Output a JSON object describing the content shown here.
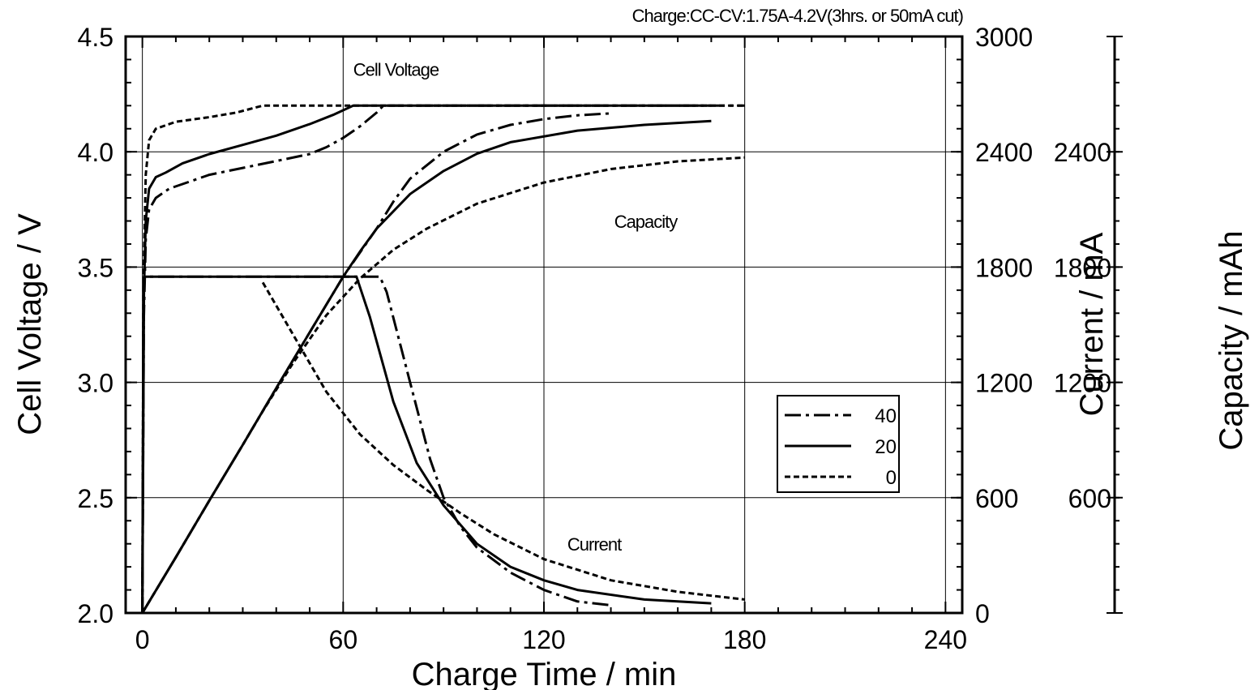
{
  "chart_data": {
    "type": "line",
    "subtitle": "Charge:CC-CV:1.75A-4.2V(3hrs. or 50mA cut)",
    "xlabel": "Charge Time / min",
    "ylabel_left": "Cell Voltage / V",
    "ylabel_right_1": "Current / mA",
    "ylabel_right_2": "Capacity / mAh",
    "xlim": [
      -5,
      245
    ],
    "ylim_left": [
      2.0,
      4.5
    ],
    "ylim_right_1": [
      0,
      3000
    ],
    "ylim_right_2": [
      0,
      3000
    ],
    "x_ticks": [
      {
        "value": 0,
        "label": "0"
      },
      {
        "value": 60,
        "label": "60"
      },
      {
        "value": 120,
        "label": "120"
      },
      {
        "value": 180,
        "label": "180"
      },
      {
        "value": 240,
        "label": "240"
      }
    ],
    "y_left_ticks": [
      {
        "value": 2.0,
        "label": "2.0"
      },
      {
        "value": 2.5,
        "label": "2.5"
      },
      {
        "value": 3.0,
        "label": "3.0"
      },
      {
        "value": 3.5,
        "label": "3.5"
      },
      {
        "value": 4.0,
        "label": "4.0"
      },
      {
        "value": 4.5,
        "label": "4.5"
      }
    ],
    "y_right1_ticks": [
      {
        "value": 0,
        "label": "0"
      },
      {
        "value": 600,
        "label": "600"
      },
      {
        "value": 1200,
        "label": "1200"
      },
      {
        "value": 1800,
        "label": "1800"
      },
      {
        "value": 2400,
        "label": "2400"
      },
      {
        "value": 3000,
        "label": "3000"
      }
    ],
    "y_right2_ticks": [
      {
        "value": 600,
        "label": "600"
      },
      {
        "value": 1200,
        "label": "1200"
      },
      {
        "value": 1800,
        "label": "1800"
      },
      {
        "value": 2400,
        "label": "2400"
      }
    ],
    "grid": true,
    "legend_position": "lower-right",
    "annotations": [
      {
        "text": "Cell Voltage",
        "x": 63,
        "y": 4.33
      },
      {
        "text": "Capacity",
        "x": 141,
        "y": 3.67
      },
      {
        "text": "Current",
        "x": 127,
        "y": 2.27
      }
    ],
    "series": [
      {
        "name": "40",
        "style": "dashdot",
        "color": "#000000",
        "voltage": [
          [
            0,
            2.0
          ],
          [
            0.3,
            3.2
          ],
          [
            1,
            3.62
          ],
          [
            2,
            3.75
          ],
          [
            4,
            3.8
          ],
          [
            8,
            3.84
          ],
          [
            12,
            3.86
          ],
          [
            20,
            3.9
          ],
          [
            30,
            3.93
          ],
          [
            40,
            3.96
          ],
          [
            50,
            3.99
          ],
          [
            55,
            4.02
          ],
          [
            60,
            4.06
          ],
          [
            65,
            4.11
          ],
          [
            70,
            4.17
          ],
          [
            72,
            4.2
          ],
          [
            180,
            4.2
          ]
        ],
        "current": [
          [
            0,
            0
          ],
          [
            0.5,
            1750
          ],
          [
            71,
            1750
          ],
          [
            73,
            1670
          ],
          [
            80,
            1200
          ],
          [
            86,
            800
          ],
          [
            90,
            600
          ],
          [
            95,
            450
          ],
          [
            100,
            340
          ],
          [
            110,
            210
          ],
          [
            120,
            120
          ],
          [
            130,
            60
          ],
          [
            140,
            40
          ]
        ],
        "capacity": [
          [
            0,
            0
          ],
          [
            10,
            290
          ],
          [
            20,
            585
          ],
          [
            30,
            875
          ],
          [
            40,
            1170
          ],
          [
            50,
            1460
          ],
          [
            60,
            1750
          ],
          [
            70,
            2000
          ],
          [
            75,
            2140
          ],
          [
            80,
            2260
          ],
          [
            90,
            2400
          ],
          [
            100,
            2490
          ],
          [
            110,
            2540
          ],
          [
            120,
            2570
          ],
          [
            130,
            2590
          ],
          [
            140,
            2600
          ]
        ]
      },
      {
        "name": "20",
        "style": "solid",
        "color": "#000000",
        "voltage": [
          [
            0,
            2.0
          ],
          [
            0.3,
            3.3
          ],
          [
            1,
            3.7
          ],
          [
            2,
            3.84
          ],
          [
            4,
            3.89
          ],
          [
            7,
            3.91
          ],
          [
            12,
            3.95
          ],
          [
            20,
            3.99
          ],
          [
            30,
            4.03
          ],
          [
            40,
            4.07
          ],
          [
            50,
            4.12
          ],
          [
            57,
            4.16
          ],
          [
            63,
            4.2
          ],
          [
            170,
            4.2
          ]
        ],
        "current": [
          [
            0,
            0
          ],
          [
            0.5,
            1750
          ],
          [
            64,
            1750
          ],
          [
            68,
            1540
          ],
          [
            75,
            1100
          ],
          [
            82,
            780
          ],
          [
            90,
            560
          ],
          [
            100,
            360
          ],
          [
            110,
            240
          ],
          [
            120,
            170
          ],
          [
            130,
            120
          ],
          [
            150,
            70
          ],
          [
            170,
            50
          ]
        ],
        "capacity": [
          [
            0,
            0
          ],
          [
            10,
            290
          ],
          [
            20,
            585
          ],
          [
            30,
            875
          ],
          [
            40,
            1170
          ],
          [
            50,
            1460
          ],
          [
            60,
            1750
          ],
          [
            65,
            1880
          ],
          [
            70,
            2000
          ],
          [
            80,
            2180
          ],
          [
            90,
            2300
          ],
          [
            100,
            2390
          ],
          [
            110,
            2450
          ],
          [
            130,
            2510
          ],
          [
            150,
            2540
          ],
          [
            170,
            2560
          ]
        ]
      },
      {
        "name": "0",
        "style": "dashed",
        "color": "#000000",
        "voltage": [
          [
            0,
            2.0
          ],
          [
            0.3,
            3.4
          ],
          [
            1,
            3.9
          ],
          [
            2,
            4.05
          ],
          [
            4,
            4.1
          ],
          [
            10,
            4.13
          ],
          [
            20,
            4.15
          ],
          [
            28,
            4.17
          ],
          [
            36,
            4.2
          ],
          [
            180,
            4.2
          ]
        ],
        "current": [
          [
            36,
            1720
          ],
          [
            45,
            1450
          ],
          [
            55,
            1150
          ],
          [
            65,
            930
          ],
          [
            75,
            770
          ],
          [
            85,
            640
          ],
          [
            95,
            520
          ],
          [
            105,
            410
          ],
          [
            120,
            280
          ],
          [
            140,
            170
          ],
          [
            160,
            110
          ],
          [
            180,
            70
          ]
        ],
        "capacity": [
          [
            0,
            0
          ],
          [
            10,
            290
          ],
          [
            20,
            585
          ],
          [
            30,
            875
          ],
          [
            36,
            1050
          ],
          [
            45,
            1300
          ],
          [
            55,
            1550
          ],
          [
            65,
            1740
          ],
          [
            75,
            1890
          ],
          [
            85,
            2000
          ],
          [
            100,
            2130
          ],
          [
            120,
            2240
          ],
          [
            140,
            2310
          ],
          [
            160,
            2350
          ],
          [
            180,
            2370
          ]
        ]
      }
    ]
  }
}
